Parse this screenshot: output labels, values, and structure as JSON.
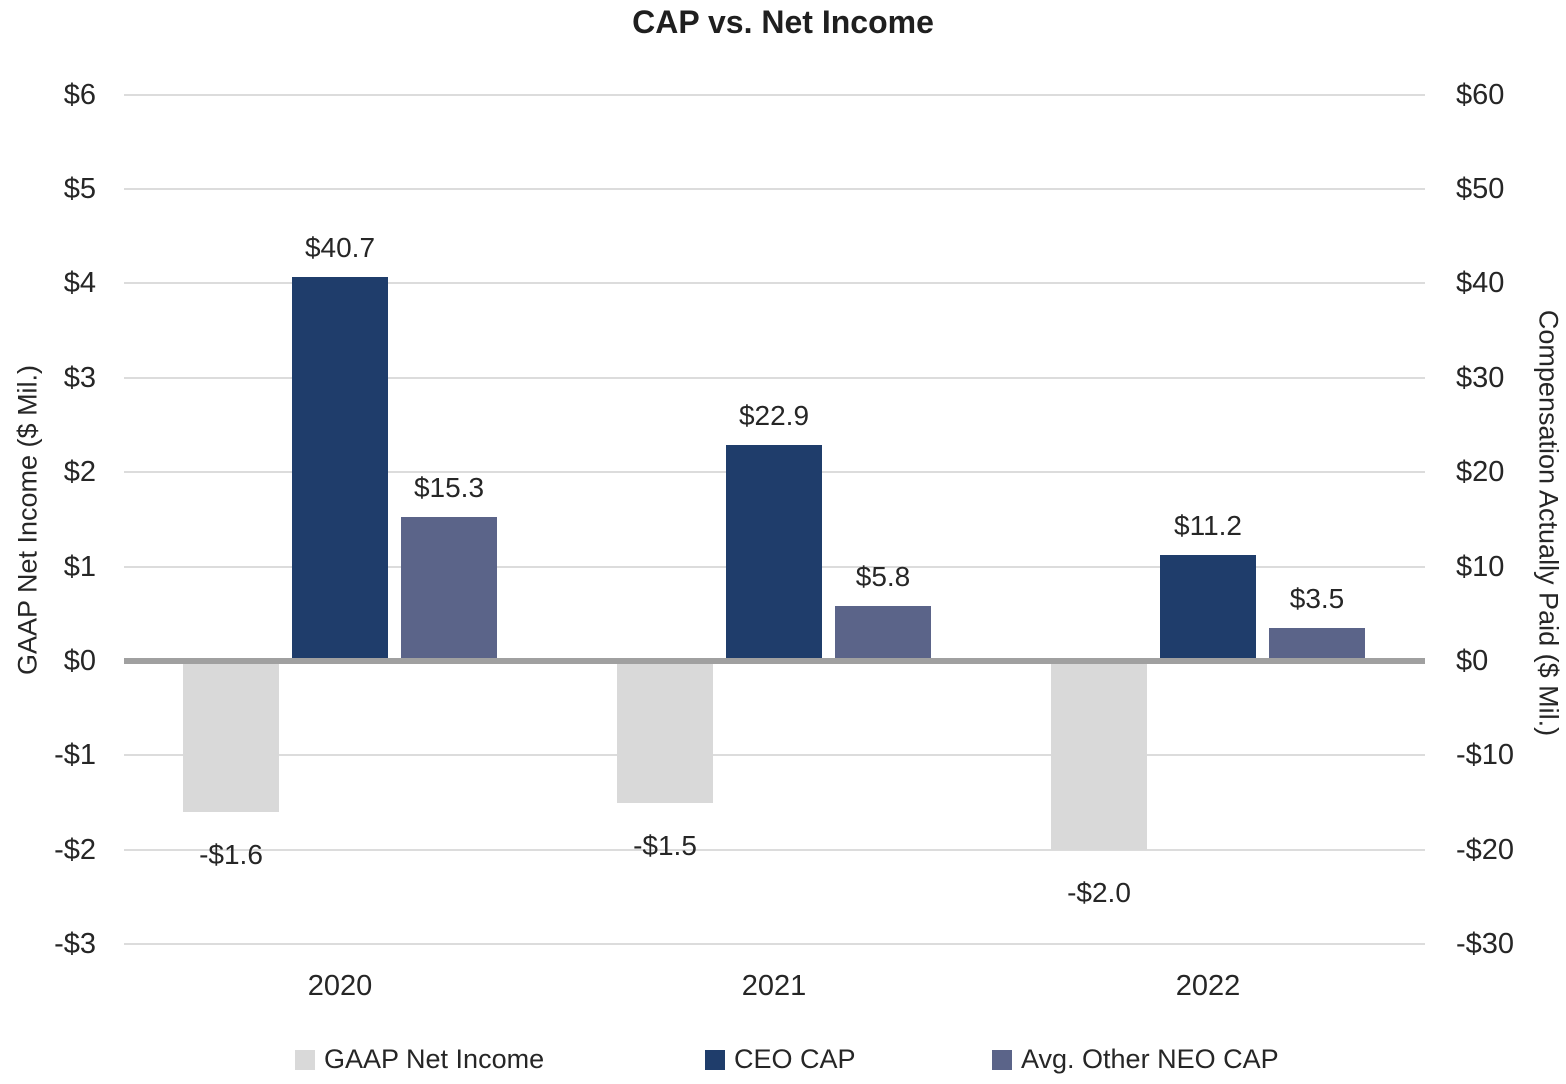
{
  "chart_data": {
    "type": "bar",
    "title": "CAP vs. Net Income",
    "categories": [
      "2020",
      "2021",
      "2022"
    ],
    "series": [
      {
        "name": "GAAP Net Income",
        "axis": "left",
        "color": "#D9D9D9",
        "values": [
          -1.6,
          -1.5,
          -2.0
        ],
        "labels": [
          "-$1.6",
          "-$1.5",
          "-$2.0"
        ]
      },
      {
        "name": "CEO CAP",
        "axis": "right",
        "color": "#1F3D6B",
        "values": [
          40.7,
          22.9,
          11.2
        ],
        "labels": [
          "$40.7",
          "$22.9",
          "$11.2"
        ]
      },
      {
        "name": "Avg. Other NEO CAP",
        "axis": "right",
        "color": "#5B6489",
        "values": [
          15.3,
          5.8,
          3.5
        ],
        "labels": [
          "$15.3",
          "$5.8",
          "$3.5"
        ]
      }
    ],
    "left_axis": {
      "label": "GAAP Net Income ($ Mil.)",
      "ticks": [
        "$6",
        "$5",
        "$4",
        "$3",
        "$2",
        "$1",
        "$0",
        "-$1",
        "-$2",
        "-$3"
      ],
      "min": -3,
      "max": 6
    },
    "right_axis": {
      "label": "Compensation Actually Paid ($ Mil.)",
      "ticks": [
        "$60",
        "$50",
        "$40",
        "$30",
        "$20",
        "$10",
        "$0",
        "-$10",
        "-$20",
        "-$30"
      ],
      "min": -30,
      "max": 60
    },
    "grid": true,
    "legend_position": "bottom",
    "gridline_color": "#DCDCDC",
    "zero_line_color": "#A0A0A0",
    "text_color": "#262626"
  }
}
